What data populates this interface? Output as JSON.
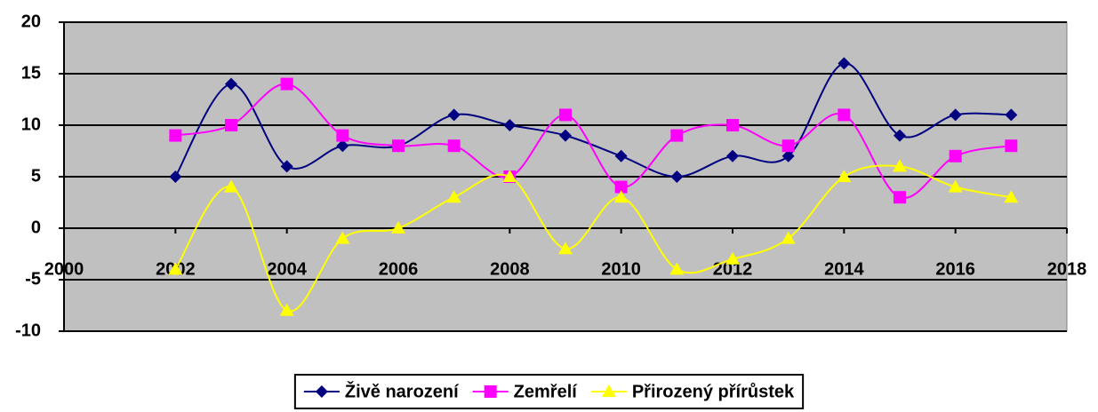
{
  "chart_data": {
    "type": "line",
    "x": [
      2002,
      2003,
      2004,
      2005,
      2006,
      2007,
      2008,
      2009,
      2010,
      2011,
      2012,
      2013,
      2014,
      2015,
      2016,
      2017
    ],
    "series": [
      {
        "name": "Živě narození",
        "color": "#000080",
        "values": [
          5,
          14,
          6,
          8,
          8,
          11,
          10,
          9,
          7,
          5,
          7,
          7,
          16,
          9,
          11,
          11
        ]
      },
      {
        "name": "Zemřelí",
        "color": "#ff00ff",
        "values": [
          9,
          10,
          14,
          9,
          8,
          8,
          5,
          11,
          4,
          9,
          10,
          8,
          11,
          3,
          7,
          8
        ]
      },
      {
        "name": "Přirozený přírůstek",
        "color": "#ffff00",
        "values": [
          -4,
          4,
          -8,
          -1,
          0,
          3,
          5,
          -2,
          3,
          -4,
          -3,
          -1,
          5,
          6,
          4,
          3
        ]
      }
    ],
    "xlim": [
      2000,
      2018
    ],
    "xticks": [
      2000,
      2002,
      2004,
      2006,
      2008,
      2010,
      2012,
      2014,
      2016,
      2018
    ],
    "ylim": [
      -10,
      20
    ],
    "yticks": [
      -10,
      -5,
      0,
      5,
      10,
      15,
      20
    ],
    "grid": true,
    "smooth": true,
    "legend": "bottom"
  }
}
